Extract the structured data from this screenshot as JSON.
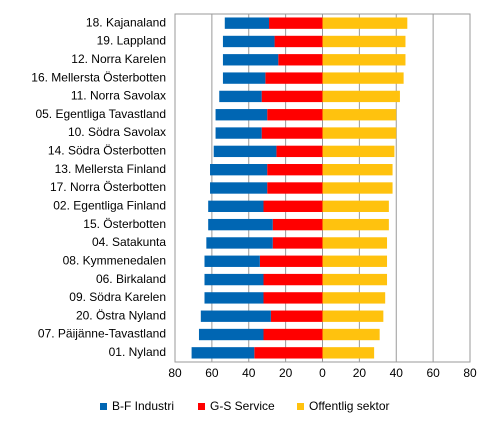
{
  "chart_data": {
    "type": "diverging_stacked_bar",
    "categories": [
      "18. Kajanaland",
      "19. Lappland",
      "12. Norra Karelen",
      "16. Mellersta Österbotten",
      "11. Norra Savolax",
      "05. Egentliga Tavastland",
      "10. Södra Savolax",
      "14. Södra Österbotten",
      "13. Mellersta Finland",
      "17. Norra Österbotten",
      "02. Egentliga Finland",
      "15. Österbotten",
      "04. Satakunta",
      "08. Kymmenedalen",
      "06. Birkaland",
      "09. Södra Karelen",
      "20. Östra Nyland",
      "07. Päijänne-Tavastland",
      "01. Nyland"
    ],
    "series": [
      {
        "name": "B-F Industri",
        "color": "#0066b3",
        "values": [
          -24,
          -28,
          -30,
          -23,
          -23,
          -28,
          -25,
          -34,
          -31,
          -31,
          -30,
          -35,
          -36,
          -30,
          -32,
          -32,
          -38,
          -35,
          -34
        ]
      },
      {
        "name": "G-S Service",
        "color": "#ff0000",
        "values": [
          -29,
          -26,
          -24,
          -31,
          -33,
          -30,
          -33,
          -25,
          -30,
          -30,
          -32,
          -27,
          -27,
          -34,
          -32,
          -32,
          -28,
          -32,
          -37
        ]
      },
      {
        "name": "Offentlig sektor",
        "color": "#ffc20e",
        "values": [
          46,
          45,
          45,
          44,
          42,
          40,
          40,
          39,
          38,
          38,
          36,
          36,
          35,
          35,
          35,
          34,
          33,
          31,
          28
        ]
      }
    ],
    "xlim": [
      -80,
      80
    ],
    "xticks": [
      {
        "value": -80,
        "label": "80"
      },
      {
        "value": -60,
        "label": "60"
      },
      {
        "value": -40,
        "label": "40"
      },
      {
        "value": -20,
        "label": "20"
      },
      0,
      20,
      40,
      60,
      80
    ],
    "grid": true
  }
}
